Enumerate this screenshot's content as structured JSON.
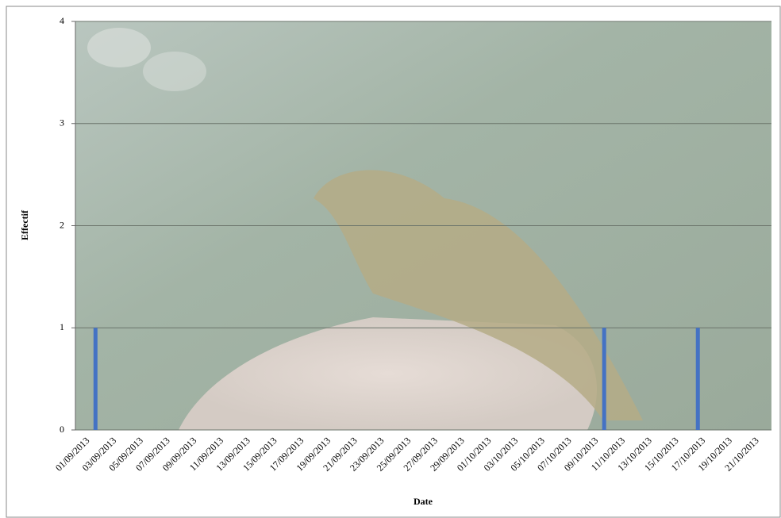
{
  "chart_data": {
    "type": "bar",
    "y_label": "Effectif",
    "x_label": "Date",
    "categories": [
      "01/09/2013",
      null,
      "03/09/2013",
      null,
      "05/09/2013",
      null,
      "07/09/2013",
      null,
      "09/09/2013",
      null,
      "11/09/2013",
      null,
      "13/09/2013",
      null,
      "15/09/2013",
      null,
      "17/09/2013",
      null,
      "19/09/2013",
      null,
      "21/09/2013",
      null,
      "23/09/2013",
      null,
      "25/09/2013",
      null,
      "27/09/2013",
      null,
      "29/09/2013",
      null,
      "01/10/2013",
      null,
      "03/10/2013",
      null,
      "05/10/2013",
      null,
      "07/10/2013",
      null,
      "09/10/2013",
      null,
      "11/10/2013",
      null,
      "13/10/2013",
      null,
      "15/10/2013",
      null,
      "17/10/2013",
      null,
      "19/10/2013",
      null,
      "21/10/2013",
      null
    ],
    "values": [
      0,
      1,
      0,
      0,
      0,
      0,
      0,
      0,
      0,
      0,
      0,
      0,
      0,
      0,
      0,
      0,
      0,
      0,
      0,
      0,
      0,
      0,
      0,
      0,
      0,
      0,
      0,
      0,
      0,
      0,
      0,
      0,
      0,
      0,
      0,
      0,
      0,
      0,
      0,
      1,
      0,
      0,
      0,
      0,
      0,
      0,
      1,
      0,
      0,
      0,
      0,
      0
    ],
    "color": "#4472c4",
    "ylim": [
      0,
      4
    ],
    "yticks": [
      0,
      1,
      2,
      3,
      4
    ],
    "grid": true
  }
}
